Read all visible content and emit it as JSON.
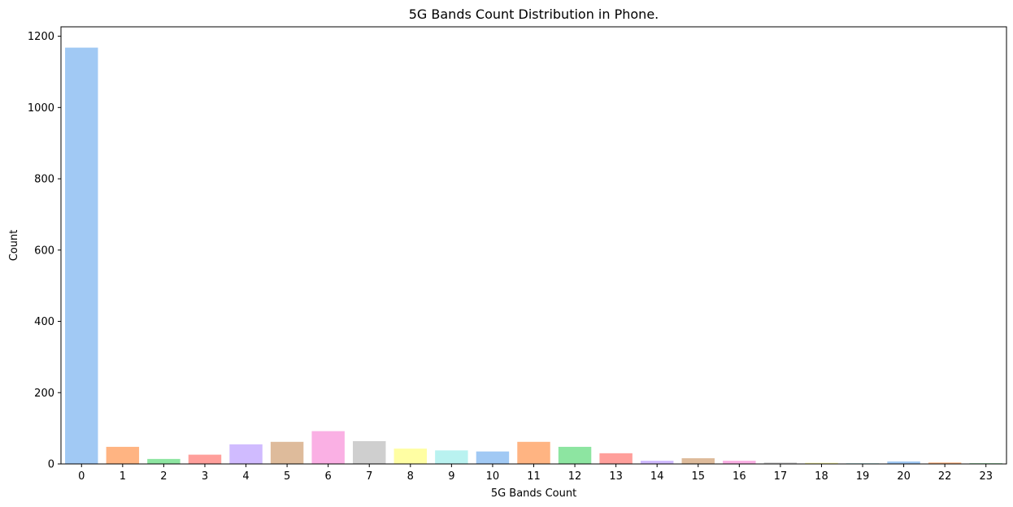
{
  "chart_data": {
    "type": "bar",
    "title": "5G Bands Count Distribution in Phone.",
    "xlabel": "5G Bands Count",
    "ylabel": "Count",
    "categories": [
      "0",
      "1",
      "2",
      "3",
      "4",
      "5",
      "6",
      "7",
      "8",
      "9",
      "10",
      "11",
      "12",
      "13",
      "14",
      "15",
      "16",
      "17",
      "18",
      "19",
      "20",
      "22",
      "23"
    ],
    "values": [
      1168,
      48,
      14,
      26,
      55,
      62,
      92,
      64,
      43,
      38,
      35,
      62,
      48,
      30,
      9,
      16,
      9,
      4,
      3,
      2,
      7,
      4,
      2
    ],
    "colors": [
      "#a1c9f4",
      "#ffb482",
      "#8de5a1",
      "#ff9f9b",
      "#d0bbff",
      "#debb9b",
      "#fab0e4",
      "#cfcfcf",
      "#fffea3",
      "#b9f2f0",
      "#a1c9f4",
      "#ffb482",
      "#8de5a1",
      "#ff9f9b",
      "#d0bbff",
      "#debb9b",
      "#fab0e4",
      "#cfcfcf",
      "#fffea3",
      "#b9f2f0",
      "#a1c9f4",
      "#ffb482",
      "#8de5a1"
    ],
    "yticks": [
      0,
      200,
      400,
      600,
      800,
      1000,
      1200
    ],
    "ylim": [
      0,
      1226.4
    ],
    "grid": false,
    "legend": "none"
  }
}
